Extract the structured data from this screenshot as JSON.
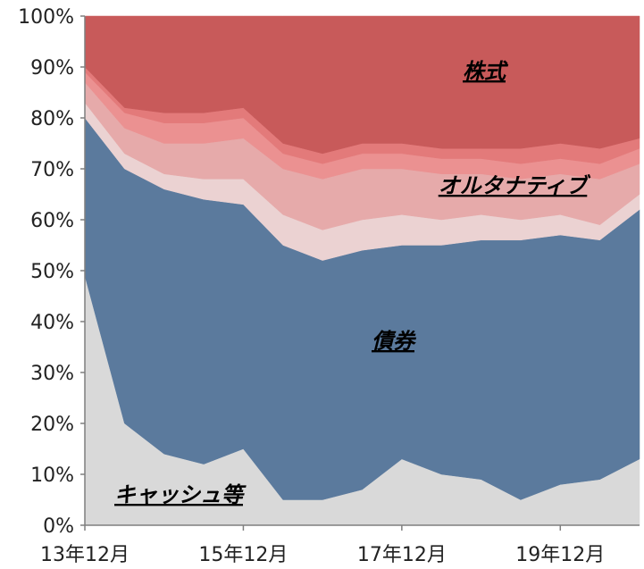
{
  "chart_data": {
    "type": "area",
    "stacked": true,
    "x": [
      "13年12月",
      "14年6月",
      "14年12月",
      "15年6月",
      "15年12月",
      "16年6月",
      "16年12月",
      "17年6月",
      "17年12月",
      "18年6月",
      "18年12月",
      "19年6月",
      "19年12月",
      "20年6月",
      "20年12月"
    ],
    "x_tick_labels": [
      "13年12月",
      "15年12月",
      "17年12月",
      "19年12月"
    ],
    "y_ticks": [
      "0%",
      "10%",
      "20%",
      "30%",
      "40%",
      "50%",
      "60%",
      "70%",
      "80%",
      "90%",
      "100%"
    ],
    "ylim": [
      0,
      100
    ],
    "grid": false,
    "series": [
      {
        "name": "キャッシュ等",
        "color": "#d9d9d9",
        "values": [
          49,
          20,
          14,
          12,
          15,
          5,
          5,
          7,
          13,
          10,
          9,
          5,
          8,
          9,
          13
        ]
      },
      {
        "name": "債券",
        "color": "#5b7a9d",
        "values": [
          31,
          50,
          52,
          52,
          48,
          50,
          47,
          47,
          42,
          45,
          47,
          51,
          49,
          47,
          49
        ]
      },
      {
        "name": "",
        "color": "#ebd2d2",
        "values": [
          3,
          3,
          3,
          4,
          5,
          6,
          6,
          6,
          6,
          5,
          5,
          4,
          4,
          3,
          3
        ]
      },
      {
        "name": "オルタナティブ",
        "color": "#e6aaaa",
        "values": [
          4,
          5,
          6,
          7,
          8,
          9,
          10,
          10,
          9,
          9,
          8,
          8,
          8,
          9,
          6
        ]
      },
      {
        "name": "",
        "color": "#eb9191",
        "values": [
          2,
          3,
          4,
          4,
          4,
          3,
          3,
          3,
          3,
          3,
          3,
          3,
          3,
          3,
          3
        ]
      },
      {
        "name": "",
        "color": "#e37a7a",
        "values": [
          1,
          1,
          2,
          2,
          2,
          2,
          2,
          2,
          2,
          2,
          2,
          3,
          3,
          3,
          2
        ]
      },
      {
        "name": "株式",
        "color": "#c85a5a",
        "values": [
          10,
          18,
          19,
          19,
          18,
          25,
          27,
          25,
          25,
          26,
          26,
          26,
          25,
          26,
          24
        ]
      }
    ]
  }
}
